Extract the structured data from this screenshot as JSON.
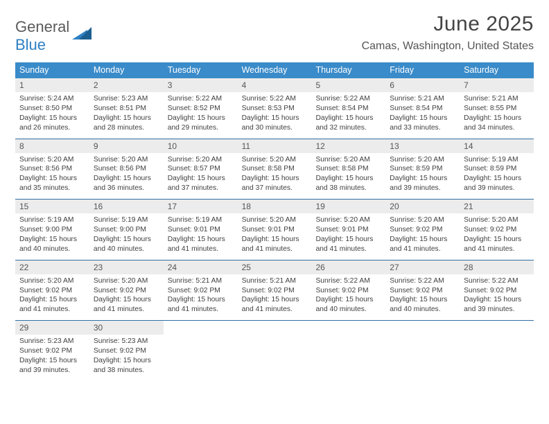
{
  "brand": {
    "word1": "General",
    "word2": "Blue"
  },
  "title": "June 2025",
  "location": "Camas, Washington, United States",
  "colors": {
    "header_bg": "#3a8bc9",
    "week_divider": "#2f6fa3",
    "daynum_bg": "#ececec",
    "text": "#404040",
    "brand_gray": "#5a5a5a",
    "brand_blue": "#2f80c3"
  },
  "weekdays": [
    "Sunday",
    "Monday",
    "Tuesday",
    "Wednesday",
    "Thursday",
    "Friday",
    "Saturday"
  ],
  "weeks": [
    [
      {
        "n": "1",
        "sunrise": "5:24 AM",
        "sunset": "8:50 PM",
        "daylight": "15 hours and 26 minutes."
      },
      {
        "n": "2",
        "sunrise": "5:23 AM",
        "sunset": "8:51 PM",
        "daylight": "15 hours and 28 minutes."
      },
      {
        "n": "3",
        "sunrise": "5:22 AM",
        "sunset": "8:52 PM",
        "daylight": "15 hours and 29 minutes."
      },
      {
        "n": "4",
        "sunrise": "5:22 AM",
        "sunset": "8:53 PM",
        "daylight": "15 hours and 30 minutes."
      },
      {
        "n": "5",
        "sunrise": "5:22 AM",
        "sunset": "8:54 PM",
        "daylight": "15 hours and 32 minutes."
      },
      {
        "n": "6",
        "sunrise": "5:21 AM",
        "sunset": "8:54 PM",
        "daylight": "15 hours and 33 minutes."
      },
      {
        "n": "7",
        "sunrise": "5:21 AM",
        "sunset": "8:55 PM",
        "daylight": "15 hours and 34 minutes."
      }
    ],
    [
      {
        "n": "8",
        "sunrise": "5:20 AM",
        "sunset": "8:56 PM",
        "daylight": "15 hours and 35 minutes."
      },
      {
        "n": "9",
        "sunrise": "5:20 AM",
        "sunset": "8:56 PM",
        "daylight": "15 hours and 36 minutes."
      },
      {
        "n": "10",
        "sunrise": "5:20 AM",
        "sunset": "8:57 PM",
        "daylight": "15 hours and 37 minutes."
      },
      {
        "n": "11",
        "sunrise": "5:20 AM",
        "sunset": "8:58 PM",
        "daylight": "15 hours and 37 minutes."
      },
      {
        "n": "12",
        "sunrise": "5:20 AM",
        "sunset": "8:58 PM",
        "daylight": "15 hours and 38 minutes."
      },
      {
        "n": "13",
        "sunrise": "5:20 AM",
        "sunset": "8:59 PM",
        "daylight": "15 hours and 39 minutes."
      },
      {
        "n": "14",
        "sunrise": "5:19 AM",
        "sunset": "8:59 PM",
        "daylight": "15 hours and 39 minutes."
      }
    ],
    [
      {
        "n": "15",
        "sunrise": "5:19 AM",
        "sunset": "9:00 PM",
        "daylight": "15 hours and 40 minutes."
      },
      {
        "n": "16",
        "sunrise": "5:19 AM",
        "sunset": "9:00 PM",
        "daylight": "15 hours and 40 minutes."
      },
      {
        "n": "17",
        "sunrise": "5:19 AM",
        "sunset": "9:01 PM",
        "daylight": "15 hours and 41 minutes."
      },
      {
        "n": "18",
        "sunrise": "5:20 AM",
        "sunset": "9:01 PM",
        "daylight": "15 hours and 41 minutes."
      },
      {
        "n": "19",
        "sunrise": "5:20 AM",
        "sunset": "9:01 PM",
        "daylight": "15 hours and 41 minutes."
      },
      {
        "n": "20",
        "sunrise": "5:20 AM",
        "sunset": "9:02 PM",
        "daylight": "15 hours and 41 minutes."
      },
      {
        "n": "21",
        "sunrise": "5:20 AM",
        "sunset": "9:02 PM",
        "daylight": "15 hours and 41 minutes."
      }
    ],
    [
      {
        "n": "22",
        "sunrise": "5:20 AM",
        "sunset": "9:02 PM",
        "daylight": "15 hours and 41 minutes."
      },
      {
        "n": "23",
        "sunrise": "5:20 AM",
        "sunset": "9:02 PM",
        "daylight": "15 hours and 41 minutes."
      },
      {
        "n": "24",
        "sunrise": "5:21 AM",
        "sunset": "9:02 PM",
        "daylight": "15 hours and 41 minutes."
      },
      {
        "n": "25",
        "sunrise": "5:21 AM",
        "sunset": "9:02 PM",
        "daylight": "15 hours and 41 minutes."
      },
      {
        "n": "26",
        "sunrise": "5:22 AM",
        "sunset": "9:02 PM",
        "daylight": "15 hours and 40 minutes."
      },
      {
        "n": "27",
        "sunrise": "5:22 AM",
        "sunset": "9:02 PM",
        "daylight": "15 hours and 40 minutes."
      },
      {
        "n": "28",
        "sunrise": "5:22 AM",
        "sunset": "9:02 PM",
        "daylight": "15 hours and 39 minutes."
      }
    ],
    [
      {
        "n": "29",
        "sunrise": "5:23 AM",
        "sunset": "9:02 PM",
        "daylight": "15 hours and 39 minutes."
      },
      {
        "n": "30",
        "sunrise": "5:23 AM",
        "sunset": "9:02 PM",
        "daylight": "15 hours and 38 minutes."
      },
      null,
      null,
      null,
      null,
      null
    ]
  ],
  "labels": {
    "sunrise": "Sunrise: ",
    "sunset": "Sunset: ",
    "daylight": "Daylight: "
  }
}
